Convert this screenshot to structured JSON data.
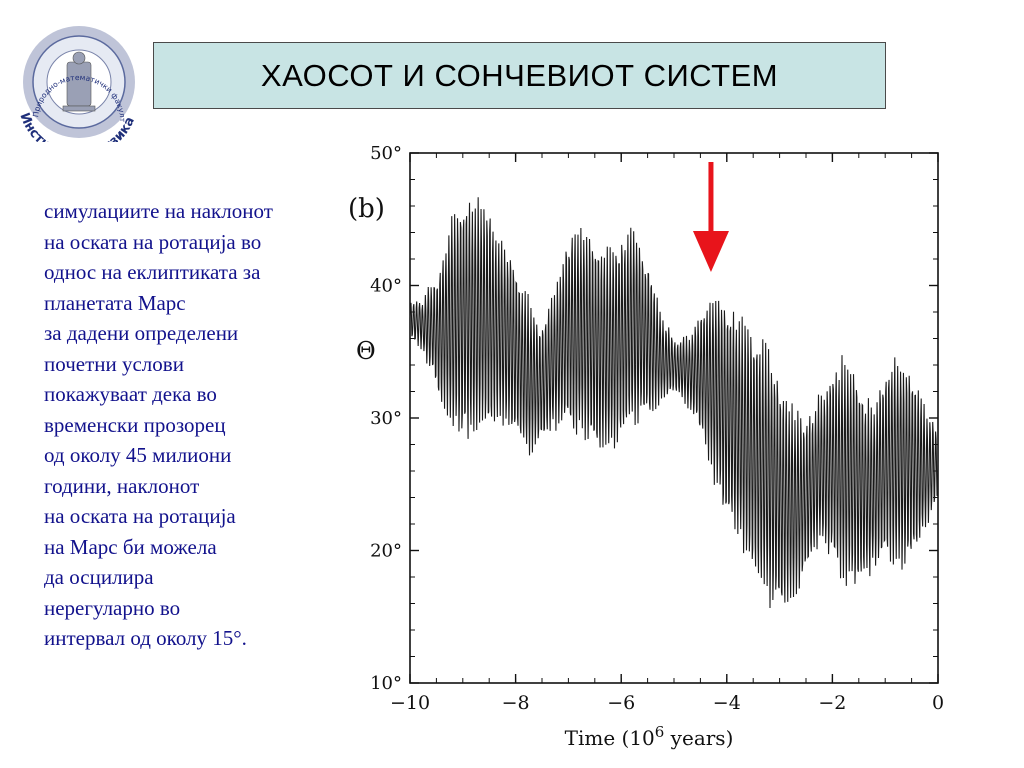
{
  "logo": {
    "arc_top": "Природно-математички факултет",
    "arc_bottom": "Институт за физика"
  },
  "slide": {
    "title": "ХАОСОТ И СОНЧЕВИОТ СИСТЕМ",
    "body_lines": [
      "симулациите на наклонот",
      "на оската на ротација во",
      "однос на еклиптиката за",
      "планетата Марс",
      "за дадени определени",
      "почетни услови",
      "покажуваат дека во",
      "временски прозорец",
      "од околу 45 милиони",
      "години, наклонот",
      "на оската на ротација",
      "на Марс би можела",
      "да осцилира",
      "нерегуларно во",
      "интервал од околу 15°."
    ]
  },
  "chart_data": {
    "type": "line",
    "panel_label": "(b)",
    "xlabel_main": "Time (10",
    "xlabel_exp": "6",
    "xlabel_tail": " years)",
    "ylabel": "Θ",
    "xlim": [
      -10,
      0
    ],
    "ylim": [
      10,
      50
    ],
    "xticks": [
      -10,
      -8,
      -6,
      -4,
      -2,
      0
    ],
    "xtick_labels": [
      "−10",
      "−8",
      "−6",
      "−4",
      "−2",
      "0"
    ],
    "yticks": [
      10,
      20,
      30,
      40,
      50
    ],
    "ytick_labels": [
      "10°",
      "20°",
      "30°",
      "40°",
      "50°"
    ],
    "arrow_x": -4.3,
    "line_color": "#1a1a1a",
    "arrow_color": "#e8141b",
    "envelope": {
      "x": [
        -10,
        -9.75,
        -9.5,
        -9.25,
        -9.0,
        -8.75,
        -8.5,
        -8.25,
        -8.0,
        -7.75,
        -7.5,
        -7.25,
        -7.0,
        -6.75,
        -6.5,
        -6.25,
        -6.0,
        -5.75,
        -5.5,
        -5.25,
        -5.0,
        -4.75,
        -4.5,
        -4.25,
        -4.0,
        -3.75,
        -3.5,
        -3.25,
        -3.0,
        -2.75,
        -2.5,
        -2.25,
        -2.0,
        -1.75,
        -1.5,
        -1.25,
        -1.0,
        -0.75,
        -0.5,
        -0.25,
        0
      ],
      "upper": [
        39,
        39,
        41,
        45,
        47,
        47,
        46,
        44,
        42,
        39,
        37,
        40,
        44,
        45,
        44,
        43,
        44,
        45,
        42,
        38,
        36,
        36,
        38,
        40,
        39,
        38,
        37,
        36,
        33,
        31,
        30,
        32,
        34,
        35,
        33,
        31,
        34,
        35,
        34,
        31,
        29
      ],
      "lower": [
        36,
        35,
        32,
        29,
        28,
        28,
        29,
        29,
        28,
        27,
        28,
        29,
        29,
        28,
        27,
        27,
        28,
        29,
        30,
        31,
        32,
        31,
        29,
        25,
        22,
        20,
        18,
        16,
        15,
        16,
        18,
        20,
        19,
        17,
        17,
        18,
        19,
        18,
        19,
        21,
        24
      ]
    },
    "series": [
      {
        "points_per_unit": 110,
        "seed": 7
      }
    ]
  }
}
